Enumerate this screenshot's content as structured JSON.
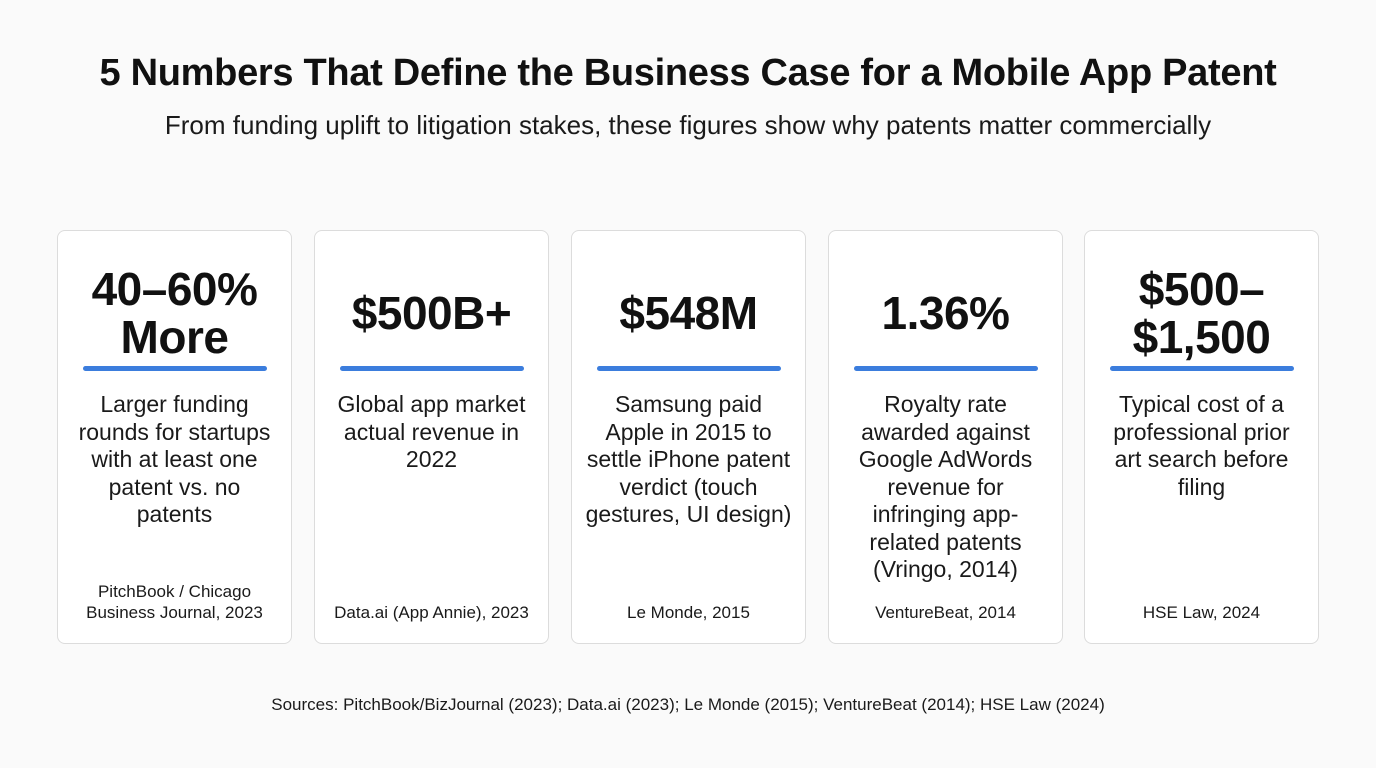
{
  "header": {
    "title": "5 Numbers That Define the Business Case for a Mobile App Patent",
    "subtitle": "From funding uplift to litigation stakes, these figures show why patents matter commercially"
  },
  "accent_color": "#3b7ddd",
  "cards": [
    {
      "stat": "40–60% More",
      "description": "Larger funding rounds for startups with at least one patent vs. no patents",
      "source": "PitchBook / Chicago Business Journal, 2023"
    },
    {
      "stat": "$500B+",
      "description": "Global app market actual revenue in 2022",
      "source": "Data.ai (App Annie), 2023"
    },
    {
      "stat": "$548M",
      "description": "Samsung paid Apple in 2015 to settle iPhone patent verdict (touch gestures, UI design)",
      "source": "Le Monde, 2015"
    },
    {
      "stat": "1.36%",
      "description": "Royalty rate awarded against Google AdWords revenue for infringing app-related patents (Vringo, 2014)",
      "source": "VentureBeat, 2014"
    },
    {
      "stat": "$500–$1,500",
      "description": "Typical cost of a professional prior art search before filing",
      "source": "HSE Law, 2024"
    }
  ],
  "footer": {
    "sources": "Sources: PitchBook/BizJournal (2023); Data.ai (2023); Le Monde (2015); VentureBeat (2014); HSE Law (2024)"
  }
}
